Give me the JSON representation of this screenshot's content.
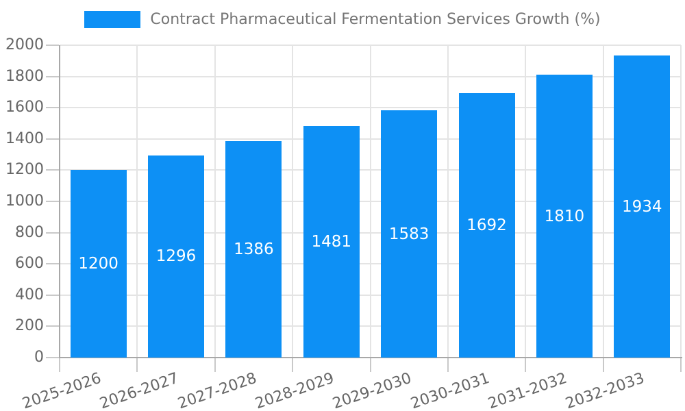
{
  "legend": {
    "label": "Contract Pharmaceutical Fermentation Services Growth (%)"
  },
  "chart_data": {
    "type": "bar",
    "title": "Contract Pharmaceutical Fermentation Services Growth (%)",
    "categories": [
      "2025-2026",
      "2026-2027",
      "2027-2028",
      "2028-2029",
      "2029-2030",
      "2030-2031",
      "2031-2032",
      "2032-2033"
    ],
    "series": [
      {
        "name": "Contract Pharmaceutical Fermentation Services Growth (%)",
        "values": [
          1200,
          1296,
          1386,
          1481,
          1583,
          1692,
          1810,
          1934
        ]
      }
    ],
    "xlabel": "",
    "ylabel": "",
    "ylim": [
      0,
      2000
    ],
    "ytick_step": 200,
    "grid": true,
    "legend_position": "top-center",
    "bar_value_labels_inside": true,
    "x_label_rotation_deg": -19,
    "colors": {
      "bar": "#0d90f5",
      "bar_label": "#ffffff",
      "grid": "#e4e4e4",
      "axis_line": "#a8a8a8",
      "tick": "#c9c9c9",
      "axis_text": "#666666",
      "legend_text": "#757575",
      "background": "#ffffff"
    }
  }
}
